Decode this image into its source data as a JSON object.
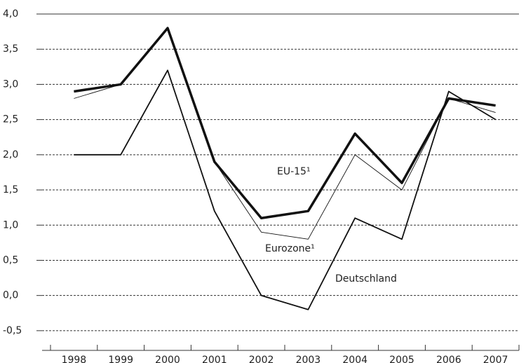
{
  "chart_data": {
    "type": "line",
    "categories": [
      "1998",
      "1999",
      "2000",
      "2001",
      "2002",
      "2003",
      "2004",
      "2005",
      "2006",
      "2007"
    ],
    "series": [
      {
        "name": "EU-15¹",
        "color": "#111111",
        "values": [
          2.9,
          3.0,
          3.8,
          1.9,
          1.1,
          1.2,
          2.3,
          1.6,
          2.8,
          2.7
        ]
      },
      {
        "name": "Eurozone¹",
        "color": "#111111",
        "values": [
          2.8,
          3.0,
          3.8,
          1.9,
          0.9,
          0.8,
          2.0,
          1.5,
          2.8,
          2.6
        ]
      },
      {
        "name": "Deutschland",
        "color": "#111111",
        "values": [
          2.0,
          2.0,
          3.2,
          1.2,
          0.0,
          -0.2,
          1.1,
          0.8,
          2.9,
          2.5
        ]
      }
    ],
    "ylim": [
      -0.78,
      4.0
    ],
    "yticks": [
      {
        "value": -0.5,
        "label": "-0,5"
      },
      {
        "value": 0,
        "label": "0,0"
      },
      {
        "value": 0.5,
        "label": "0,5"
      },
      {
        "value": 1,
        "label": "1,0"
      },
      {
        "value": 1.5,
        "label": "1,5"
      },
      {
        "value": 2,
        "label": "2,0"
      },
      {
        "value": 2.5,
        "label": "2,5"
      },
      {
        "value": 3,
        "label": "3,0"
      },
      {
        "value": 3.5,
        "label": "3,5"
      },
      {
        "value": 4,
        "label": "4,0"
      }
    ],
    "grid": true
  }
}
